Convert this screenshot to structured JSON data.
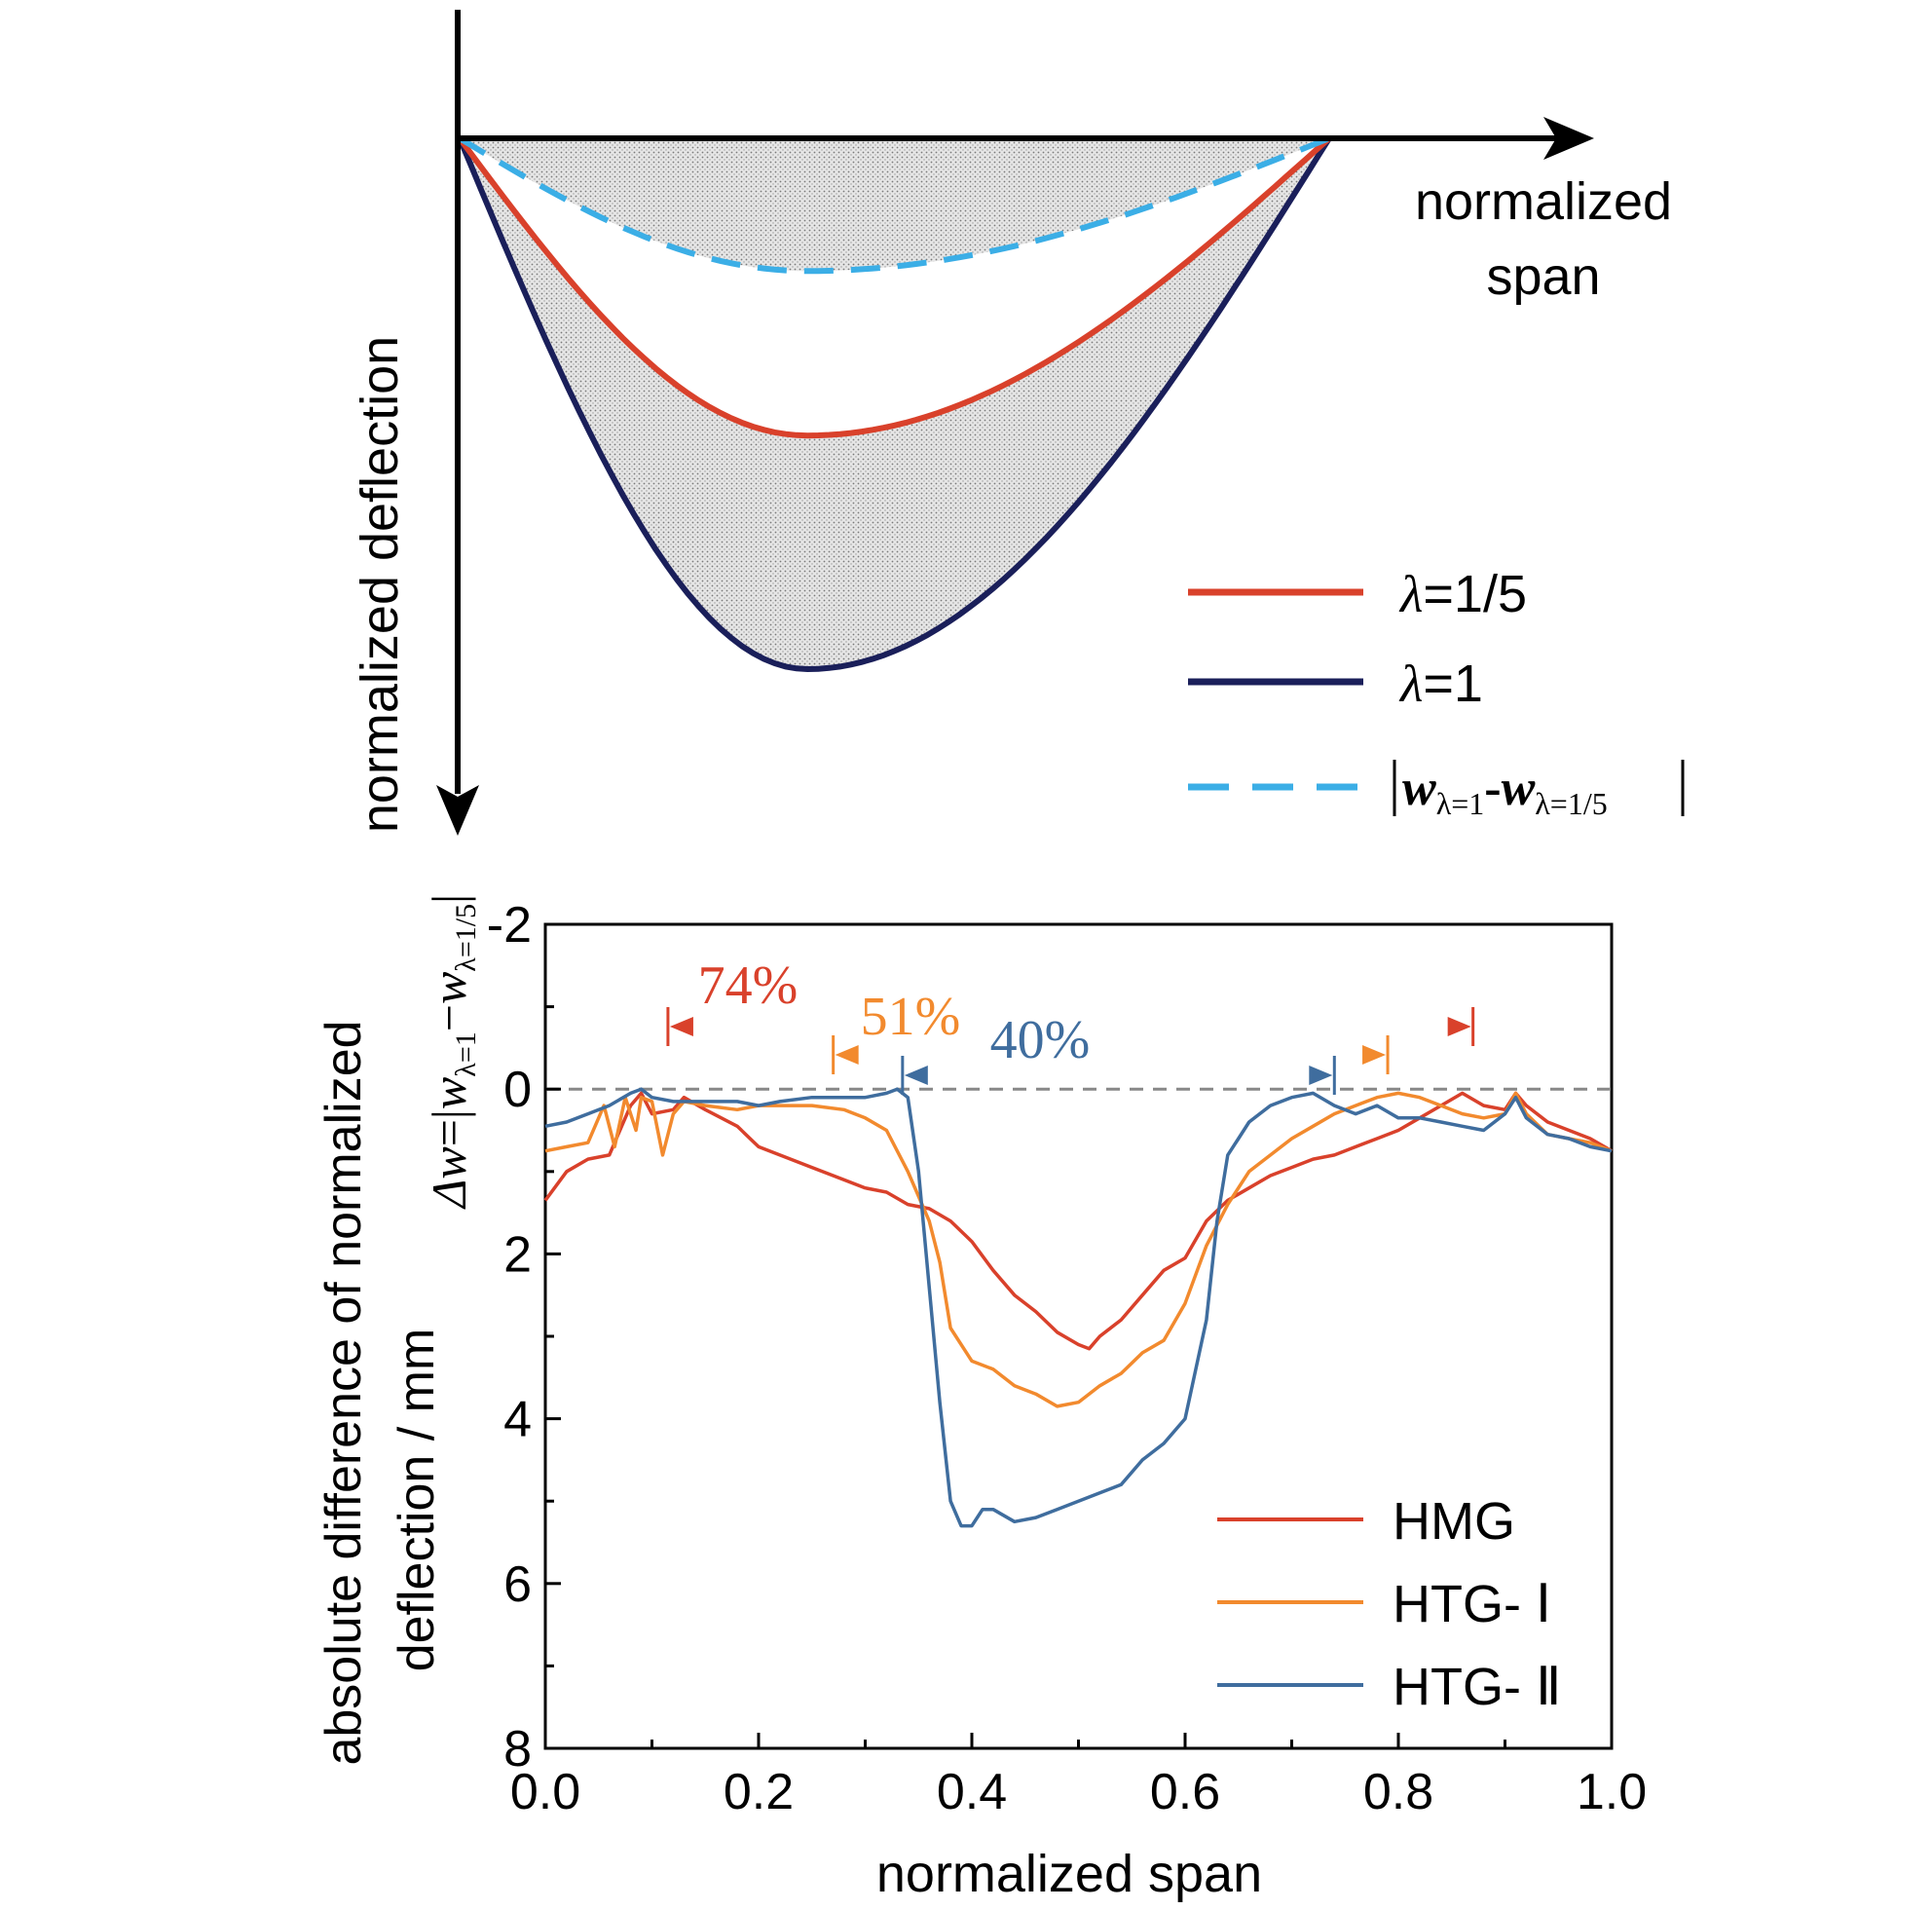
{
  "top_diagram": {
    "x_axis_label_line1": "normalized",
    "x_axis_label_line2": "span",
    "y_axis_label": "normalized deflection",
    "series": [
      {
        "name": "λ=1/5",
        "lambda_symbol": "λ",
        "lambda_value": "=1/5",
        "color": "#d9412b",
        "style": "solid",
        "relative_depth": 0.56
      },
      {
        "name": "λ=1",
        "lambda_symbol": "λ",
        "lambda_value": "=1",
        "color": "#1a1f5a",
        "style": "solid",
        "relative_depth": 1.0
      },
      {
        "name": "|wλ=1-wλ=1/5|",
        "color": "#3baee6",
        "style": "dashed",
        "relative_depth": 0.25
      }
    ],
    "legend_diff": {
      "w1": "w",
      "sub1": "λ=1",
      "dash": "-",
      "w2": "w",
      "sub2": "λ=1/5"
    }
  },
  "chart_data": {
    "type": "line",
    "xlabel": "normalized span",
    "ylabel_line1": "absolute difference of normalized",
    "ylabel_line2": "deflection / mm",
    "inner_ylabel": {
      "delta": "Δw",
      "eq": "=|",
      "w1": "w",
      "sub1": "λ=1",
      "minus": "−",
      "w2": "w",
      "sub2": "λ=1/5",
      "end": "|"
    },
    "xlim": [
      0.0,
      1.0
    ],
    "ylim": [
      -2,
      8
    ],
    "y_inverted": true,
    "x_ticks": [
      "0.0",
      "0.2",
      "0.4",
      "0.6",
      "0.8",
      "1.0"
    ],
    "y_ticks": [
      "-2",
      "0",
      "2",
      "4",
      "6",
      "8"
    ],
    "reference_line_y": 0,
    "legend_position": "bottom-right",
    "series": [
      {
        "name": "HMG",
        "color": "#d9412b",
        "x": [
          0.0,
          0.02,
          0.04,
          0.06,
          0.07,
          0.08,
          0.09,
          0.1,
          0.12,
          0.13,
          0.15,
          0.18,
          0.2,
          0.22,
          0.25,
          0.28,
          0.3,
          0.32,
          0.34,
          0.36,
          0.38,
          0.4,
          0.42,
          0.44,
          0.46,
          0.48,
          0.5,
          0.51,
          0.52,
          0.54,
          0.56,
          0.58,
          0.6,
          0.62,
          0.64,
          0.66,
          0.68,
          0.7,
          0.72,
          0.74,
          0.76,
          0.78,
          0.8,
          0.82,
          0.84,
          0.86,
          0.88,
          0.9,
          0.91,
          0.92,
          0.94,
          0.96,
          0.98,
          1.0
        ],
        "y": [
          1.35,
          1.0,
          0.85,
          0.8,
          0.5,
          0.2,
          0.05,
          0.3,
          0.25,
          0.1,
          0.25,
          0.45,
          0.7,
          0.8,
          0.95,
          1.1,
          1.2,
          1.25,
          1.4,
          1.45,
          1.6,
          1.85,
          2.2,
          2.5,
          2.7,
          2.95,
          3.1,
          3.15,
          3.0,
          2.8,
          2.5,
          2.2,
          2.05,
          1.6,
          1.35,
          1.2,
          1.05,
          0.95,
          0.85,
          0.8,
          0.7,
          0.6,
          0.5,
          0.35,
          0.2,
          0.05,
          0.2,
          0.25,
          0.05,
          0.2,
          0.4,
          0.5,
          0.6,
          0.75
        ]
      },
      {
        "name": "HTG- Ⅰ",
        "color": "#f28a2e",
        "x": [
          0.0,
          0.02,
          0.04,
          0.055,
          0.065,
          0.075,
          0.085,
          0.09,
          0.1,
          0.11,
          0.12,
          0.13,
          0.15,
          0.18,
          0.2,
          0.22,
          0.25,
          0.28,
          0.3,
          0.32,
          0.34,
          0.36,
          0.37,
          0.38,
          0.4,
          0.42,
          0.44,
          0.46,
          0.48,
          0.5,
          0.52,
          0.54,
          0.56,
          0.58,
          0.6,
          0.62,
          0.64,
          0.66,
          0.68,
          0.7,
          0.72,
          0.74,
          0.76,
          0.78,
          0.8,
          0.82,
          0.84,
          0.86,
          0.88,
          0.9,
          0.91,
          0.92,
          0.94,
          0.96,
          0.98,
          1.0
        ],
        "y": [
          0.75,
          0.7,
          0.65,
          0.2,
          0.7,
          0.1,
          0.5,
          0.1,
          0.15,
          0.8,
          0.3,
          0.15,
          0.2,
          0.25,
          0.2,
          0.2,
          0.2,
          0.25,
          0.35,
          0.5,
          1.0,
          1.6,
          2.1,
          2.9,
          3.3,
          3.4,
          3.6,
          3.7,
          3.85,
          3.8,
          3.6,
          3.45,
          3.2,
          3.05,
          2.6,
          1.9,
          1.4,
          1.0,
          0.8,
          0.6,
          0.45,
          0.3,
          0.2,
          0.1,
          0.05,
          0.1,
          0.2,
          0.3,
          0.35,
          0.3,
          0.05,
          0.3,
          0.55,
          0.6,
          0.65,
          0.75
        ]
      },
      {
        "name": "HTG- Ⅱ",
        "color": "#3f6d9e",
        "x": [
          0.0,
          0.02,
          0.04,
          0.06,
          0.08,
          0.09,
          0.1,
          0.12,
          0.15,
          0.18,
          0.2,
          0.22,
          0.25,
          0.28,
          0.3,
          0.32,
          0.33,
          0.34,
          0.35,
          0.36,
          0.37,
          0.38,
          0.39,
          0.4,
          0.41,
          0.42,
          0.44,
          0.46,
          0.48,
          0.5,
          0.52,
          0.54,
          0.56,
          0.58,
          0.6,
          0.62,
          0.63,
          0.64,
          0.65,
          0.66,
          0.68,
          0.7,
          0.72,
          0.74,
          0.76,
          0.78,
          0.8,
          0.82,
          0.84,
          0.86,
          0.88,
          0.9,
          0.91,
          0.92,
          0.94,
          0.96,
          0.98,
          1.0
        ],
        "y": [
          0.45,
          0.4,
          0.3,
          0.2,
          0.05,
          0.0,
          0.1,
          0.15,
          0.15,
          0.15,
          0.2,
          0.15,
          0.1,
          0.1,
          0.1,
          0.05,
          0.0,
          0.1,
          1.0,
          2.4,
          3.8,
          5.0,
          5.3,
          5.3,
          5.1,
          5.1,
          5.25,
          5.2,
          5.1,
          5.0,
          4.9,
          4.8,
          4.5,
          4.3,
          4.0,
          2.8,
          1.6,
          0.8,
          0.6,
          0.4,
          0.2,
          0.1,
          0.05,
          0.2,
          0.3,
          0.2,
          0.35,
          0.35,
          0.4,
          0.45,
          0.5,
          0.3,
          0.1,
          0.35,
          0.55,
          0.6,
          0.7,
          0.75
        ]
      }
    ],
    "annotations": [
      {
        "label": "74%",
        "color": "#d9412b",
        "x_start": 0.115,
        "x_end": 0.87
      },
      {
        "label": "51%",
        "color": "#f28a2e",
        "x_start": 0.27,
        "x_end": 0.79
      },
      {
        "label": "40%",
        "color": "#3f6d9e",
        "x_start": 0.335,
        "x_end": 0.74
      }
    ]
  }
}
